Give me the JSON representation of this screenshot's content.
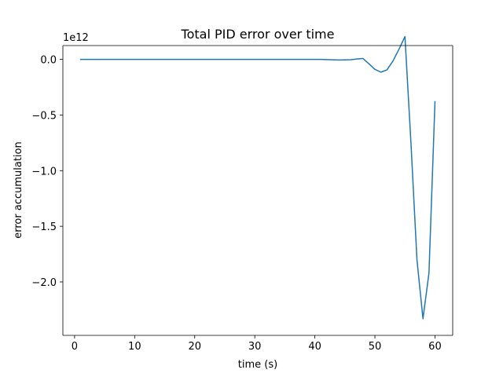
{
  "chart_data": {
    "type": "line",
    "title": "Total PID error over time",
    "xlabel": "time (s)",
    "ylabel": "error accumulation",
    "y_offset_label": "1e12",
    "xlim": [
      -1.95,
      62.95
    ],
    "ylim": [
      -2.48,
      0.124
    ],
    "y_scale_factor": 1000000000000.0,
    "x_ticks": [
      0,
      10,
      20,
      30,
      40,
      50,
      60
    ],
    "x_tick_labels": [
      "0",
      "10",
      "20",
      "30",
      "40",
      "50",
      "60"
    ],
    "y_ticks": [
      0.0,
      -0.5,
      -1.0,
      -1.5,
      -2.0
    ],
    "y_tick_labels": [
      "0.0",
      "−0.5",
      "−1.0",
      "−1.5",
      "−2.0"
    ],
    "grid": false,
    "colors": {
      "line": "#1f77b4"
    },
    "series": [
      {
        "x": [
          1,
          5,
          10,
          15,
          20,
          25,
          30,
          35,
          40,
          41,
          42,
          43,
          44,
          45,
          46,
          47,
          48,
          49,
          50,
          51,
          52,
          53,
          54,
          55,
          56,
          57,
          58,
          59,
          60
        ],
        "values": [
          0,
          0,
          0,
          0,
          0,
          0,
          0,
          0,
          0,
          0,
          -0.002,
          -0.004,
          -0.006,
          -0.005,
          -0.003,
          0.003,
          0.008,
          -0.04,
          -0.09,
          -0.115,
          -0.095,
          -0.015,
          0.09,
          0.205,
          -0.75,
          -1.8,
          -2.33,
          -1.92,
          -0.38
        ]
      }
    ]
  }
}
